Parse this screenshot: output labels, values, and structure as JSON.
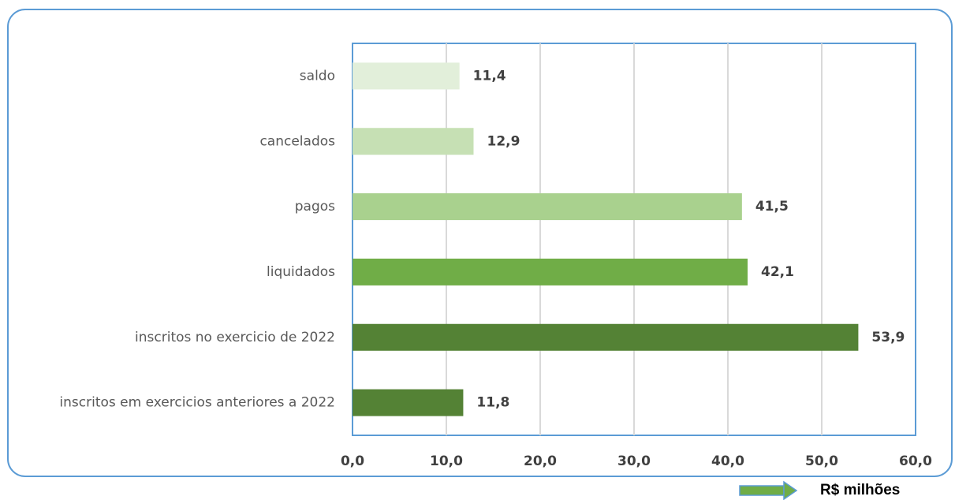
{
  "chart_data": {
    "type": "barh",
    "categories": [
      "saldo",
      "cancelados",
      "pagos",
      "liquidados",
      "inscritos no exercicio de 2022",
      "inscritos em exercicios anteriores a 2022"
    ],
    "values": [
      11.4,
      12.9,
      41.5,
      42.1,
      53.9,
      11.8
    ],
    "value_labels": [
      "11,4",
      "12,9",
      "41,5",
      "42,1",
      "53,9",
      "11,8"
    ],
    "colors": [
      "#e2efda",
      "#c6e0b4",
      "#a9d18e",
      "#70ad47",
      "#548235",
      "#548235"
    ],
    "xlim": [
      0,
      60
    ],
    "xticks": [
      {
        "value": 0,
        "label": "0,0"
      },
      {
        "value": 10,
        "label": "10,0"
      },
      {
        "value": 20,
        "label": "20,0"
      },
      {
        "value": 30,
        "label": "30,0"
      },
      {
        "value": 40,
        "label": "40,0"
      },
      {
        "value": 50,
        "label": "50,0"
      },
      {
        "value": 60,
        "label": "60,0"
      }
    ],
    "xlabel": "R$ milhões",
    "grid": true
  }
}
